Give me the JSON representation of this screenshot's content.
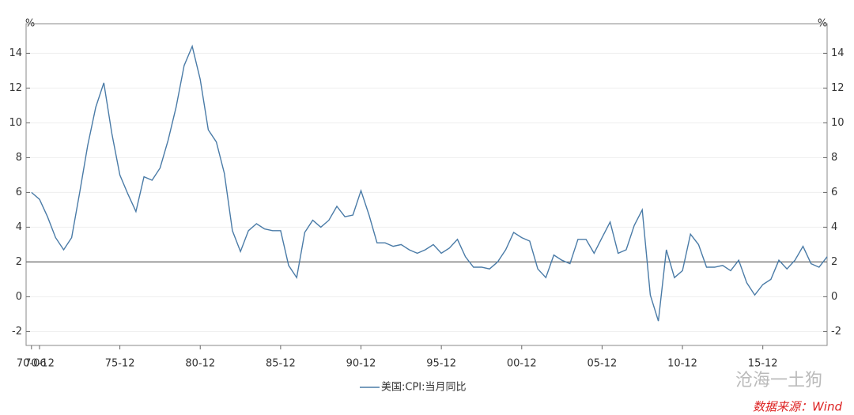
{
  "chart_data": {
    "type": "line",
    "y_unit_left": "%",
    "y_unit_right": "%",
    "categories": [
      "70-06",
      "70-12",
      null,
      null,
      null,
      null,
      null,
      null,
      null,
      null,
      null,
      "75-12",
      null,
      null,
      null,
      null,
      null,
      null,
      null,
      null,
      null,
      "80-12",
      null,
      null,
      null,
      null,
      null,
      null,
      null,
      null,
      null,
      "85-12",
      null,
      null,
      null,
      null,
      null,
      null,
      null,
      null,
      null,
      "90-12",
      null,
      null,
      null,
      null,
      null,
      null,
      null,
      null,
      null,
      "95-12",
      null,
      null,
      null,
      null,
      null,
      null,
      null,
      null,
      null,
      "00-12",
      null,
      null,
      null,
      null,
      null,
      null,
      null,
      null,
      null,
      "05-12",
      null,
      null,
      null,
      null,
      null,
      null,
      null,
      null,
      null,
      "10-12",
      null,
      null,
      null,
      null,
      null,
      null,
      null,
      null,
      null,
      "15-12",
      null,
      null,
      null,
      null,
      null,
      null,
      null,
      null
    ],
    "series": [
      {
        "name": "美国:CPI:当月同比",
        "color": "#4a7ba7",
        "values": [
          6.0,
          5.6,
          4.6,
          3.4,
          2.7,
          3.4,
          6.0,
          8.7,
          10.9,
          12.3,
          9.4,
          7.0,
          5.9,
          4.9,
          6.9,
          6.7,
          7.4,
          9.0,
          10.9,
          13.3,
          14.4,
          12.5,
          9.6,
          8.9,
          7.1,
          3.8,
          2.6,
          3.8,
          4.2,
          3.9,
          3.8,
          3.8,
          1.8,
          1.1,
          3.7,
          4.4,
          4.0,
          4.4,
          5.2,
          4.6,
          4.7,
          6.1,
          4.7,
          3.1,
          3.1,
          2.9,
          3.0,
          2.7,
          2.5,
          2.7,
          3.0,
          2.5,
          2.8,
          3.3,
          2.3,
          1.7,
          1.7,
          1.6,
          2.0,
          2.7,
          3.7,
          3.4,
          3.2,
          1.6,
          1.1,
          2.4,
          2.1,
          1.9,
          3.3,
          3.3,
          2.5,
          3.4,
          4.3,
          2.5,
          2.7,
          4.1,
          5.0,
          0.1,
          -1.4,
          2.7,
          1.1,
          1.5,
          3.6,
          3.0,
          1.7,
          1.7,
          1.8,
          1.5,
          2.1,
          0.8,
          0.1,
          0.7,
          1.0,
          2.1,
          1.6,
          2.1,
          2.9,
          1.9,
          1.7,
          2.3
        ]
      }
    ],
    "ylim": [
      -2.8,
      15.7
    ],
    "yticks": [
      -2,
      0,
      2,
      4,
      6,
      8,
      10,
      12,
      14
    ],
    "y2lim": [
      -2.8,
      15.7
    ],
    "y2ticks": [
      -2,
      0,
      2,
      4,
      6,
      8,
      10,
      12,
      14
    ],
    "reference_line": 2,
    "legend": "bottom",
    "watermark": "沧海一土狗",
    "source": "数据来源：Wind"
  }
}
